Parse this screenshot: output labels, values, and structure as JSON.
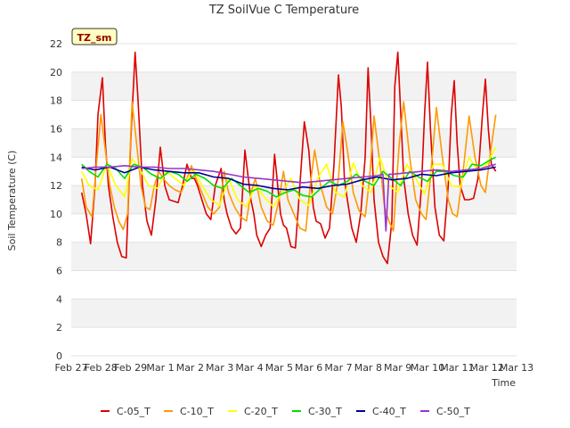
{
  "chart_data": {
    "type": "line",
    "title": "TZ SoilVue C Temperature",
    "xlabel": "Time",
    "ylabel": "Soil Temperature (C)",
    "tag": "TZ_sm",
    "ylim": [
      0,
      22
    ],
    "yticks": [
      0,
      2,
      4,
      6,
      8,
      10,
      12,
      14,
      16,
      18,
      20,
      22
    ],
    "xlim": [
      0,
      15
    ],
    "xticks": [
      {
        "pos": 0,
        "label": "Feb 27"
      },
      {
        "pos": 1,
        "label": "Feb 28"
      },
      {
        "pos": 2,
        "label": "Feb 29"
      },
      {
        "pos": 3,
        "label": "Mar 1"
      },
      {
        "pos": 4,
        "label": "Mar 2"
      },
      {
        "pos": 5,
        "label": "Mar 3"
      },
      {
        "pos": 6,
        "label": "Mar 4"
      },
      {
        "pos": 7,
        "label": "Mar 5"
      },
      {
        "pos": 8,
        "label": "Mar 6"
      },
      {
        "pos": 9,
        "label": "Mar 7"
      },
      {
        "pos": 10,
        "label": "Mar 8"
      },
      {
        "pos": 11,
        "label": "Mar 9"
      },
      {
        "pos": 12,
        "label": "Mar 10"
      },
      {
        "pos": 13,
        "label": "Mar 11"
      },
      {
        "pos": 14,
        "label": "Mar 12"
      },
      {
        "pos": 15,
        "label": "Mar 13"
      }
    ],
    "grid": "horizontal bands",
    "legend_position": "bottom",
    "series": [
      {
        "name": "C-05_T",
        "color": "#dd0000",
        "x": [
          0.35,
          0.5,
          0.65,
          0.8,
          0.9,
          1.05,
          1.15,
          1.25,
          1.4,
          1.55,
          1.7,
          1.85,
          2.0,
          2.15,
          2.25,
          2.4,
          2.55,
          2.7,
          2.85,
          3.0,
          3.15,
          3.3,
          3.45,
          3.6,
          3.75,
          3.9,
          4.05,
          4.15,
          4.25,
          4.4,
          4.55,
          4.7,
          4.85,
          5.05,
          5.15,
          5.25,
          5.4,
          5.55,
          5.7,
          5.85,
          6.05,
          6.15,
          6.25,
          6.4,
          6.55,
          6.7,
          6.85,
          7.05,
          7.15,
          7.25,
          7.4,
          7.55,
          7.7,
          7.85,
          8.0,
          8.15,
          8.25,
          8.4,
          8.55,
          8.7,
          8.85,
          9.0,
          9.1,
          9.2,
          9.3,
          9.45,
          9.6,
          9.75,
          9.9,
          10.0,
          10.1,
          10.2,
          10.35,
          10.5,
          10.65,
          10.8,
          10.9,
          11.0,
          11.1,
          11.2,
          11.35,
          11.5,
          11.65,
          11.8,
          11.9,
          12.0,
          12.1,
          12.25,
          12.4,
          12.55,
          12.7,
          12.8,
          12.9,
          13.0,
          13.1,
          13.25,
          13.4,
          13.55,
          13.7,
          13.85,
          13.95,
          14.05,
          14.15,
          14.3
        ],
        "y": [
          11.5,
          10.0,
          7.9,
          12.0,
          17.0,
          19.6,
          15.0,
          12.0,
          9.8,
          8.0,
          7.0,
          6.9,
          15.0,
          21.4,
          18.0,
          12.0,
          9.5,
          8.5,
          11.0,
          14.7,
          12.0,
          11.0,
          10.9,
          10.8,
          12.0,
          13.5,
          12.5,
          12.5,
          12.0,
          11.0,
          10.0,
          9.6,
          12.0,
          13.2,
          11.0,
          10.0,
          9.0,
          8.6,
          9.0,
          14.5,
          11.0,
          10.0,
          8.5,
          7.7,
          8.5,
          9.0,
          14.2,
          10.0,
          9.2,
          9.0,
          7.7,
          7.6,
          12.0,
          16.5,
          14.5,
          10.5,
          9.5,
          9.3,
          8.3,
          9.0,
          13.5,
          19.8,
          17.5,
          12.5,
          11.0,
          9.0,
          8.0,
          10.0,
          14.0,
          20.3,
          16.0,
          11.0,
          8.0,
          7.0,
          6.5,
          9.5,
          19.0,
          21.4,
          17.0,
          12.5,
          10.0,
          8.5,
          7.8,
          12.0,
          17.0,
          20.7,
          16.0,
          10.5,
          8.5,
          8.1,
          12.0,
          17.0,
          19.4,
          15.0,
          12.0,
          11.0,
          11.0,
          11.1,
          12.5,
          17.0,
          19.5,
          16.0,
          13.5,
          13.0
        ]
      },
      {
        "name": "C-10_T",
        "color": "#ff9900",
        "x": [
          0.35,
          0.5,
          0.7,
          0.85,
          1.0,
          1.15,
          1.3,
          1.45,
          1.6,
          1.75,
          1.9,
          2.05,
          2.2,
          2.35,
          2.5,
          2.65,
          2.8,
          2.95,
          3.1,
          3.3,
          3.5,
          3.7,
          3.9,
          4.05,
          4.2,
          4.4,
          4.6,
          4.8,
          5.0,
          5.15,
          5.3,
          5.5,
          5.7,
          5.9,
          6.05,
          6.2,
          6.4,
          6.6,
          6.8,
          7.0,
          7.15,
          7.3,
          7.5,
          7.7,
          7.9,
          8.05,
          8.2,
          8.4,
          8.6,
          8.8,
          9.0,
          9.15,
          9.3,
          9.5,
          9.7,
          9.9,
          10.05,
          10.2,
          10.4,
          10.55,
          10.7,
          10.85,
          11.05,
          11.2,
          11.4,
          11.6,
          11.8,
          11.95,
          12.1,
          12.3,
          12.5,
          12.7,
          12.85,
          13.0,
          13.2,
          13.4,
          13.6,
          13.8,
          13.95,
          14.1,
          14.3
        ],
        "y": [
          12.5,
          10.5,
          9.8,
          13.5,
          17.0,
          14.5,
          12.0,
          10.5,
          9.5,
          8.9,
          10.0,
          17.9,
          15.0,
          12.0,
          10.5,
          10.3,
          12.0,
          13.0,
          12.5,
          12.0,
          11.7,
          11.5,
          12.5,
          13.4,
          12.5,
          11.5,
          10.5,
          10.0,
          10.5,
          13.0,
          11.5,
          10.5,
          9.8,
          9.5,
          11.5,
          12.5,
          10.5,
          9.5,
          9.2,
          11.0,
          13.0,
          11.0,
          10.0,
          9.0,
          8.8,
          12.0,
          14.5,
          12.0,
          10.5,
          10.0,
          12.5,
          16.5,
          14.5,
          11.5,
          10.2,
          9.8,
          12.5,
          16.9,
          13.5,
          10.5,
          9.5,
          8.8,
          15.0,
          17.9,
          14.0,
          11.0,
          10.0,
          9.6,
          12.5,
          17.5,
          14.0,
          11.0,
          10.0,
          9.8,
          13.0,
          16.9,
          14.0,
          12.0,
          11.5,
          14.0,
          17.0
        ]
      },
      {
        "name": "C-20_T",
        "color": "#ffff00",
        "x": [
          0.35,
          0.6,
          0.9,
          1.2,
          1.5,
          1.8,
          2.05,
          2.3,
          2.6,
          2.9,
          3.2,
          3.5,
          3.8,
          4.1,
          4.4,
          4.7,
          5.0,
          5.3,
          5.6,
          5.9,
          6.2,
          6.5,
          6.8,
          7.1,
          7.4,
          7.7,
          8.0,
          8.3,
          8.6,
          8.9,
          9.2,
          9.5,
          9.8,
          10.1,
          10.4,
          10.7,
          11.0,
          11.3,
          11.6,
          11.9,
          12.2,
          12.5,
          12.8,
          13.1,
          13.4,
          13.7,
          14.0,
          14.3
        ],
        "y": [
          13.0,
          12.0,
          11.7,
          13.5,
          12.0,
          11.2,
          13.9,
          13.2,
          12.0,
          11.8,
          13.0,
          12.5,
          12.0,
          13.2,
          12.0,
          11.0,
          10.6,
          12.5,
          11.0,
          10.5,
          12.0,
          11.2,
          10.5,
          11.5,
          12.5,
          11.0,
          10.6,
          12.5,
          13.5,
          11.5,
          11.2,
          13.6,
          12.0,
          11.5,
          14.0,
          12.0,
          11.5,
          13.5,
          12.5,
          11.4,
          13.5,
          13.5,
          12.0,
          11.9,
          14.0,
          13.0,
          13.5,
          14.7
        ]
      },
      {
        "name": "C-30_T",
        "color": "#00dd00",
        "x": [
          0.35,
          0.6,
          0.9,
          1.2,
          1.5,
          1.8,
          2.1,
          2.4,
          2.7,
          3.0,
          3.3,
          3.6,
          3.9,
          4.2,
          4.5,
          4.8,
          5.1,
          5.4,
          5.7,
          6.0,
          6.3,
          6.6,
          6.9,
          7.2,
          7.5,
          7.8,
          8.1,
          8.4,
          8.7,
          9.0,
          9.3,
          9.6,
          9.9,
          10.2,
          10.5,
          10.8,
          11.1,
          11.4,
          11.7,
          12.0,
          12.3,
          12.6,
          12.9,
          13.2,
          13.5,
          13.8,
          14.1,
          14.3
        ],
        "y": [
          13.5,
          13.0,
          12.6,
          13.5,
          13.2,
          12.5,
          13.5,
          13.3,
          12.8,
          12.5,
          13.0,
          12.8,
          12.3,
          12.8,
          12.5,
          12.0,
          11.8,
          12.5,
          12.0,
          11.5,
          11.8,
          11.6,
          11.2,
          11.5,
          11.7,
          11.3,
          11.2,
          11.8,
          12.3,
          12.0,
          12.3,
          12.8,
          12.3,
          12.0,
          13.0,
          12.5,
          12.0,
          13.0,
          12.6,
          12.3,
          13.0,
          13.0,
          12.7,
          12.6,
          13.5,
          13.4,
          13.8,
          14.0
        ]
      },
      {
        "name": "C-40_T",
        "color": "#000099",
        "x": [
          0.35,
          0.8,
          1.3,
          1.8,
          2.3,
          2.8,
          3.3,
          3.8,
          4.3,
          4.8,
          5.3,
          5.8,
          6.3,
          6.8,
          7.3,
          7.8,
          8.3,
          8.8,
          9.3,
          9.8,
          10.3,
          10.8,
          11.3,
          11.8,
          12.3,
          12.8,
          13.3,
          13.8,
          14.3
        ],
        "y": [
          13.3,
          13.1,
          13.3,
          12.9,
          13.3,
          13.1,
          13.0,
          12.9,
          12.9,
          12.6,
          12.5,
          12.1,
          12.0,
          11.8,
          11.7,
          11.9,
          11.8,
          12.0,
          12.1,
          12.4,
          12.6,
          12.4,
          12.5,
          12.8,
          12.7,
          12.9,
          13.0,
          13.1,
          13.3
        ]
      },
      {
        "name": "C-50_T",
        "color": "#9933cc",
        "x": [
          0.35,
          0.8,
          1.3,
          1.8,
          2.3,
          2.8,
          3.3,
          3.8,
          4.3,
          4.8,
          5.3,
          5.8,
          6.3,
          6.8,
          7.3,
          7.8,
          8.3,
          8.8,
          9.3,
          9.8,
          10.3,
          10.5,
          10.6,
          10.7,
          10.8,
          11.3,
          11.8,
          12.3,
          12.8,
          13.3,
          13.8,
          14.3
        ],
        "y": [
          13.2,
          13.3,
          13.3,
          13.4,
          13.3,
          13.3,
          13.2,
          13.2,
          13.1,
          13.0,
          12.8,
          12.6,
          12.5,
          12.4,
          12.3,
          12.2,
          12.3,
          12.4,
          12.5,
          12.6,
          12.7,
          12.8,
          8.8,
          12.8,
          12.8,
          12.9,
          13.0,
          13.1,
          13.0,
          13.1,
          13.2,
          13.5
        ]
      }
    ]
  }
}
